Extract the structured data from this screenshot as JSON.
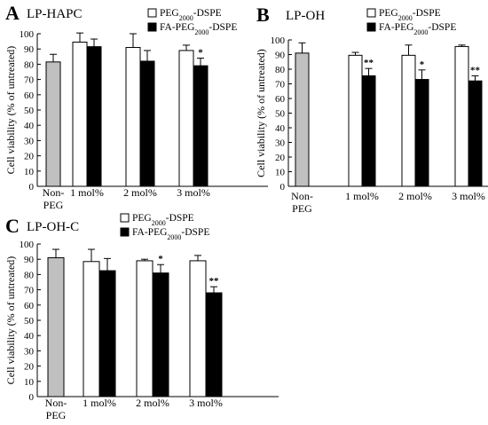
{
  "legend": {
    "peg_dspe": {
      "pre": "PEG",
      "sub": "2000",
      "post": "-DSPE"
    },
    "fa_peg_dspe": {
      "pre": "FA-PEG",
      "sub": "2000",
      "post": "-DSPE"
    }
  },
  "colors": {
    "nonpeg": "#c0c0c0",
    "peg": "#ffffff",
    "fa": "#000000"
  },
  "chart_data": [
    {
      "type": "bar",
      "panel_letter": "A",
      "title": "LP-HAPC",
      "ylabel": "Cell viability (% of untreated)",
      "ylim": [
        0,
        100
      ],
      "yticks": [
        "0",
        "10",
        "20",
        "30",
        "40",
        "50",
        "60",
        "70",
        "80",
        "90",
        "100"
      ],
      "categories": [
        [
          "Non-",
          "PEG"
        ],
        [
          "1 mol%"
        ],
        [
          "2 mol%"
        ],
        [
          "3 mol%"
        ]
      ],
      "nonpeg": {
        "value": 81.5,
        "error": 5
      },
      "series": [
        {
          "name": "PEG2000-DSPE",
          "values": [
            null,
            94.5,
            91,
            89
          ],
          "errors": [
            null,
            6,
            9,
            3.5
          ],
          "sig": [
            null,
            "",
            "",
            ""
          ]
        },
        {
          "name": "FA-PEG2000-DSPE",
          "values": [
            null,
            91.5,
            82,
            79
          ],
          "errors": [
            null,
            5,
            7,
            5
          ],
          "sig": [
            null,
            "",
            "",
            "*"
          ]
        }
      ]
    },
    {
      "type": "bar",
      "panel_letter": "B",
      "title": "LP-OH",
      "ylabel": "Cell viability (% of untreated)",
      "ylim": [
        0,
        100
      ],
      "yticks": [
        "0",
        "10",
        "20",
        "30",
        "40",
        "50",
        "60",
        "70",
        "80",
        "90",
        "100"
      ],
      "categories": [
        [
          "Non-",
          "PEG"
        ],
        [
          "1 mol%"
        ],
        [
          "2 mol%"
        ],
        [
          "3 mol%"
        ]
      ],
      "nonpeg": {
        "value": 91,
        "error": 7
      },
      "series": [
        {
          "name": "PEG2000-DSPE",
          "values": [
            null,
            89.5,
            89.5,
            95.5
          ],
          "errors": [
            null,
            2,
            7,
            1
          ],
          "sig": [
            null,
            "",
            "",
            ""
          ]
        },
        {
          "name": "FA-PEG2000-DSPE",
          "values": [
            null,
            75.5,
            73,
            72
          ],
          "errors": [
            null,
            5,
            6.5,
            3.5
          ],
          "sig": [
            null,
            "**",
            "*",
            "**"
          ]
        }
      ]
    },
    {
      "type": "bar",
      "panel_letter": "C",
      "title": "LP-OH-C",
      "ylabel": "Cell viability (% of untreated)",
      "ylim": [
        0,
        100
      ],
      "yticks": [
        "0",
        "10",
        "20",
        "30",
        "40",
        "50",
        "60",
        "70",
        "80",
        "90",
        "100"
      ],
      "categories": [
        [
          "Non-",
          "PEG"
        ],
        [
          "1 mol%"
        ],
        [
          "2 mol%"
        ],
        [
          "3 mol%"
        ]
      ],
      "nonpeg": {
        "value": 91,
        "error": 5.5
      },
      "series": [
        {
          "name": "PEG2000-DSPE",
          "values": [
            null,
            88.5,
            89,
            89
          ],
          "errors": [
            null,
            8,
            1,
            3.5
          ],
          "sig": [
            null,
            "",
            "",
            ""
          ]
        },
        {
          "name": "FA-PEG2000-DSPE",
          "values": [
            null,
            82.5,
            81,
            68
          ],
          "errors": [
            null,
            8,
            5.5,
            4
          ],
          "sig": [
            null,
            "",
            "*",
            "**"
          ]
        }
      ]
    }
  ]
}
